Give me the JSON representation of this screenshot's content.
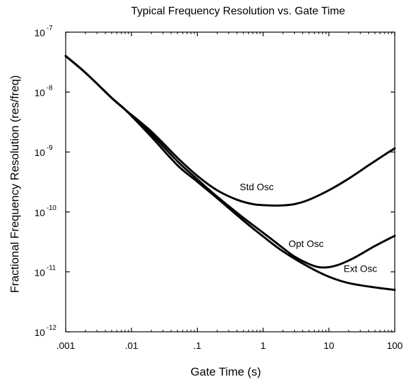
{
  "chart_data": {
    "type": "line",
    "title": "Typical Frequency Resolution vs. Gate Time",
    "xlabel": "Gate Time (s)",
    "ylabel": "Fractional Frequency Resolution (res/freq)",
    "x_scale": "log",
    "y_scale": "log",
    "xlim": [
      0.001,
      100
    ],
    "ylim": [
      1e-12,
      1e-07
    ],
    "x_ticks": [
      {
        "value": 0.001,
        "label": ".001"
      },
      {
        "value": 0.01,
        "label": ".01"
      },
      {
        "value": 0.1,
        "label": ".1"
      },
      {
        "value": 1,
        "label": "1"
      },
      {
        "value": 10,
        "label": "10"
      },
      {
        "value": 100,
        "label": "100"
      }
    ],
    "y_ticks": [
      {
        "value": 1e-07,
        "base": "10",
        "exp": "-7"
      },
      {
        "value": 1e-08,
        "base": "10",
        "exp": "-8"
      },
      {
        "value": 1e-09,
        "base": "10",
        "exp": "-9"
      },
      {
        "value": 1e-10,
        "base": "10",
        "exp": "-10"
      },
      {
        "value": 1e-11,
        "base": "10",
        "exp": "-11"
      },
      {
        "value": 1e-12,
        "base": "10",
        "exp": "-12"
      }
    ],
    "grid": false,
    "series": [
      {
        "name": "Std Osc",
        "x": [
          0.001,
          0.002,
          0.005,
          0.008,
          0.02,
          0.05,
          0.1,
          0.2,
          0.4,
          0.7,
          1.0,
          1.8,
          3.0,
          5.0,
          10,
          20,
          40,
          70,
          100
        ],
        "y": [
          4e-08,
          2.1e-08,
          8e-09,
          5.1e-09,
          2.2e-09,
          8e-10,
          4e-10,
          2.3e-10,
          1.6e-10,
          1.35e-10,
          1.3e-10,
          1.28e-10,
          1.35e-10,
          1.6e-10,
          2.3e-10,
          3.6e-10,
          6e-10,
          9e-10,
          1.15e-09
        ]
      },
      {
        "name": "Opt Osc",
        "x": [
          0.001,
          0.002,
          0.005,
          0.008,
          0.02,
          0.05,
          0.1,
          0.2,
          0.5,
          1.0,
          2.0,
          3.0,
          5.0,
          7.0,
          10,
          15,
          25,
          50,
          100
        ],
        "y": [
          4e-08,
          2.1e-08,
          8e-09,
          5.1e-09,
          2e-09,
          7e-10,
          3.5e-10,
          1.8e-10,
          8e-11,
          4.5e-11,
          2.5e-11,
          1.8e-11,
          1.35e-11,
          1.2e-11,
          1.2e-11,
          1.35e-11,
          1.75e-11,
          2.7e-11,
          4e-11
        ]
      },
      {
        "name": "Ext Osc",
        "x": [
          0.001,
          0.002,
          0.005,
          0.008,
          0.02,
          0.05,
          0.1,
          0.2,
          0.5,
          1.0,
          2.0,
          5.0,
          10,
          20,
          50,
          100
        ],
        "y": [
          4e-08,
          2.1e-08,
          8e-09,
          5.1e-09,
          1.8e-09,
          6e-10,
          3.2e-10,
          1.7e-10,
          7.2e-11,
          3.9e-11,
          2.2e-11,
          1.2e-11,
          8.3e-12,
          6.5e-12,
          5.5e-12,
          5e-12
        ]
      }
    ]
  }
}
